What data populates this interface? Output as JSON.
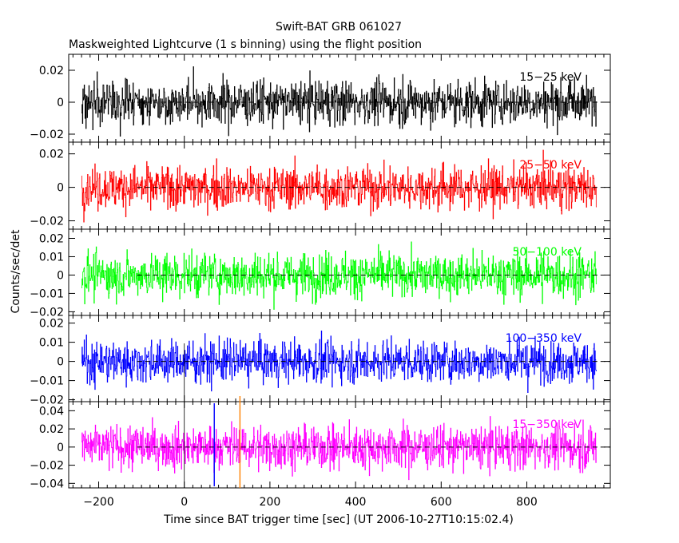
{
  "chart_data": {
    "type": "line",
    "title": "Swift-BAT GRB 061027",
    "subtitle": "Maskweighted Lightcurve (1 s binning) using the flight position",
    "xlabel": "Time since BAT trigger time [sec] (UT 2006-10-27T10:15:02.4)",
    "ylabel": "Counts/sec/det",
    "xlim": [
      -270,
      995
    ],
    "xticks": [
      -200,
      0,
      200,
      400,
      600,
      800
    ],
    "xtick_labels": [
      "−200",
      "0",
      "200",
      "400",
      "600",
      "800"
    ],
    "data_range": [
      -240,
      963
    ],
    "vlines": [
      {
        "x": 0,
        "color": "#000000",
        "name": "trigger-time"
      },
      {
        "x": 70,
        "color": "#0000ff",
        "name": "t-start"
      },
      {
        "x": 130,
        "color": "#ff8000",
        "name": "t-end"
      }
    ],
    "panels": [
      {
        "band": "15−25 keV",
        "color": "#000000",
        "ylim": [
          -0.025,
          0.03
        ],
        "yticks": [
          -0.02,
          0,
          0.02
        ],
        "ytick_labels": [
          "−0.02",
          "0",
          "0.02"
        ],
        "noise_sigma": 0.007
      },
      {
        "band": "25−50 keV",
        "color": "#ff0000",
        "ylim": [
          -0.025,
          0.027
        ],
        "yticks": [
          -0.02,
          0,
          0.02
        ],
        "ytick_labels": [
          "−0.02",
          "0",
          "0.02"
        ],
        "noise_sigma": 0.0065
      },
      {
        "band": "50−100 keV",
        "color": "#00ff00",
        "ylim": [
          -0.022,
          0.025
        ],
        "yticks": [
          -0.02,
          -0.01,
          0,
          0.01,
          0.02
        ],
        "ytick_labels": [
          "−0.02",
          "−0.01",
          "0",
          "0.01",
          "0.02"
        ],
        "noise_sigma": 0.006
      },
      {
        "band": "100−350 keV",
        "color": "#0000ff",
        "ylim": [
          -0.021,
          0.024
        ],
        "yticks": [
          -0.02,
          -0.01,
          0,
          0.01,
          0.02
        ],
        "ytick_labels": [
          "−0.02",
          "−0.01",
          "0",
          "0.01",
          "0.02"
        ],
        "noise_sigma": 0.0055
      },
      {
        "band": "15−350 keV",
        "color": "#ff00ff",
        "ylim": [
          -0.045,
          0.05
        ],
        "yticks": [
          -0.04,
          -0.02,
          0,
          0.02,
          0.04
        ],
        "ytick_labels": [
          "−0.04",
          "−0.02",
          "0",
          "0.02",
          "0.04"
        ],
        "noise_sigma": 0.012
      }
    ]
  }
}
